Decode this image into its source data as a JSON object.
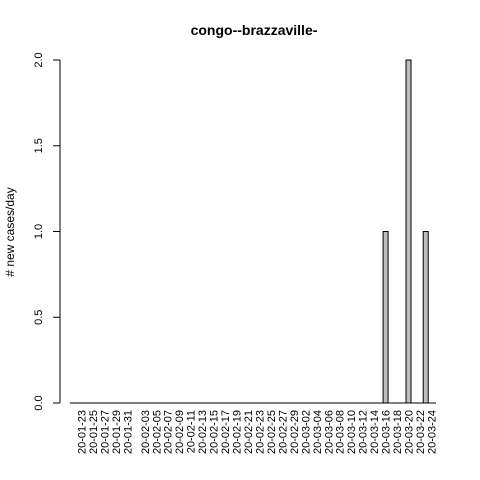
{
  "chart_data": {
    "type": "bar",
    "title": "congo--brazzaville-",
    "xlabel": "",
    "ylabel": "# new cases/day",
    "ylim": [
      0,
      2
    ],
    "yticks": [
      0.0,
      0.5,
      1.0,
      1.5,
      2.0
    ],
    "ytick_labels": [
      "0.0",
      "0.5",
      "1.0",
      "1.5",
      "2.0"
    ],
    "grid": false,
    "bar_color": "#bebebe",
    "categories": [
      "20-01-22",
      "20-01-23",
      "20-01-24",
      "20-01-25",
      "20-01-26",
      "20-01-27",
      "20-01-28",
      "20-01-29",
      "20-01-30",
      "20-01-31",
      "20-02-01",
      "20-02-02",
      "20-02-03",
      "20-02-04",
      "20-02-05",
      "20-02-06",
      "20-02-07",
      "20-02-08",
      "20-02-09",
      "20-02-10",
      "20-02-11",
      "20-02-12",
      "20-02-13",
      "20-02-14",
      "20-02-15",
      "20-02-16",
      "20-02-17",
      "20-02-18",
      "20-02-19",
      "20-02-20",
      "20-02-21",
      "20-02-22",
      "20-02-23",
      "20-02-24",
      "20-02-25",
      "20-02-26",
      "20-02-27",
      "20-02-28",
      "20-02-29",
      "20-03-01",
      "20-03-02",
      "20-03-03",
      "20-03-04",
      "20-03-05",
      "20-03-06",
      "20-03-07",
      "20-03-08",
      "20-03-09",
      "20-03-10",
      "20-03-11",
      "20-03-12",
      "20-03-13",
      "20-03-14",
      "20-03-15",
      "20-03-16",
      "20-03-17",
      "20-03-18",
      "20-03-19",
      "20-03-20",
      "20-03-21",
      "20-03-22",
      "20-03-23",
      "20-03-24"
    ],
    "values": [
      0,
      0,
      0,
      0,
      0,
      0,
      0,
      0,
      0,
      0,
      0,
      0,
      0,
      0,
      0,
      0,
      0,
      0,
      0,
      0,
      0,
      0,
      0,
      0,
      0,
      0,
      0,
      0,
      0,
      0,
      0,
      0,
      0,
      0,
      0,
      0,
      0,
      0,
      0,
      0,
      0,
      0,
      0,
      0,
      0,
      0,
      0,
      0,
      0,
      0,
      0,
      0,
      0,
      0,
      1,
      0,
      0,
      0,
      2,
      0,
      0,
      1,
      0
    ],
    "xtick_labels": [
      "20-01-23",
      "20-01-25",
      "20-01-27",
      "20-01-29",
      "20-01-31",
      "20-02-03",
      "20-02-05",
      "20-02-07",
      "20-02-09",
      "20-02-11",
      "20-02-13",
      "20-02-15",
      "20-02-17",
      "20-02-19",
      "20-02-21",
      "20-02-23",
      "20-02-25",
      "20-02-27",
      "20-02-29",
      "20-03-02",
      "20-03-04",
      "20-03-06",
      "20-03-08",
      "20-03-10",
      "20-03-12",
      "20-03-14",
      "20-03-16",
      "20-03-18",
      "20-03-20",
      "20-03-22",
      "20-03-24"
    ]
  }
}
